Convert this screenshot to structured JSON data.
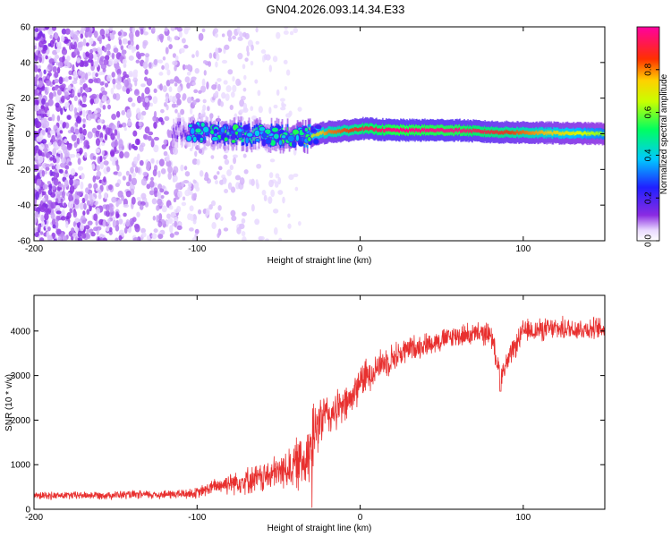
{
  "title": "GN04.2026.093.14.34.E33",
  "colors": {
    "snr_line": "#e8302f",
    "background": "#ffffff",
    "ridge_center": "#ff2000",
    "ridge_edge": "#00c0ff"
  },
  "chart_data": [
    {
      "type": "heatmap",
      "title": "",
      "xlabel": "Height of straight line (km)",
      "ylabel": "Frequency (Hz)",
      "xlim": [
        -200,
        150
      ],
      "ylim": [
        -60,
        60
      ],
      "x_ticks": [
        "-200",
        "-100",
        "0",
        "100"
      ],
      "y_ticks": [
        "60",
        "40",
        "20",
        "0",
        "-20",
        "-40",
        "-60"
      ],
      "colorbar": {
        "label": "Normalized spectral amplitude",
        "range": [
          0,
          1
        ],
        "ticks": [
          "0.0",
          "0.2",
          "0.4",
          "0.6",
          "0.8"
        ],
        "colormap": "rainbow (white-violet-blue-cyan-green-yellow-red-magenta)"
      },
      "ridge": {
        "description_points_x_km": [
          -110,
          -80,
          -50,
          -35,
          -20,
          -5,
          0,
          20,
          60,
          80,
          150
        ],
        "frequency_hz": [
          2,
          0,
          -1,
          -2,
          1,
          2,
          3,
          2,
          2,
          1,
          0
        ],
        "amplitude": [
          0.15,
          0.45,
          0.5,
          0.6,
          0.8,
          0.85,
          0.9,
          0.98,
          0.98,
          0.9,
          0.6
        ]
      },
      "noise_region_x_km": [
        -200,
        -90
      ]
    },
    {
      "type": "line",
      "title": "",
      "xlabel": "Height of straight line (km)",
      "ylabel": "SNR (10 * v/v)",
      "xlim": [
        -200,
        150
      ],
      "ylim": [
        0,
        4800
      ],
      "x_ticks": [
        "-200",
        "-100",
        "0",
        "100"
      ],
      "y_ticks": [
        "4000",
        "3000",
        "2000",
        "1000",
        "0"
      ],
      "series": [
        {
          "x": [
            -200,
            -150,
            -120,
            -100,
            -90,
            -80,
            -60,
            -45,
            -35,
            -28,
            -25,
            -20,
            -15,
            -10,
            -5,
            0,
            5,
            10,
            20,
            30,
            40,
            60,
            80,
            86,
            100,
            120,
            150
          ],
          "values": [
            300,
            320,
            330,
            360,
            500,
            600,
            700,
            900,
            1100,
            1600,
            2000,
            2100,
            2200,
            2300,
            2500,
            2900,
            3000,
            3200,
            3400,
            3600,
            3700,
            3900,
            3950,
            3000,
            4000,
            4050,
            4050
          ],
          "noise_amplitude": [
            100,
            110,
            120,
            150,
            200,
            300,
            400,
            500,
            800,
            900,
            700,
            600,
            500,
            500,
            500,
            500,
            450,
            400,
            400,
            350,
            300,
            300,
            300,
            300,
            300,
            300,
            300
          ]
        }
      ]
    }
  ]
}
